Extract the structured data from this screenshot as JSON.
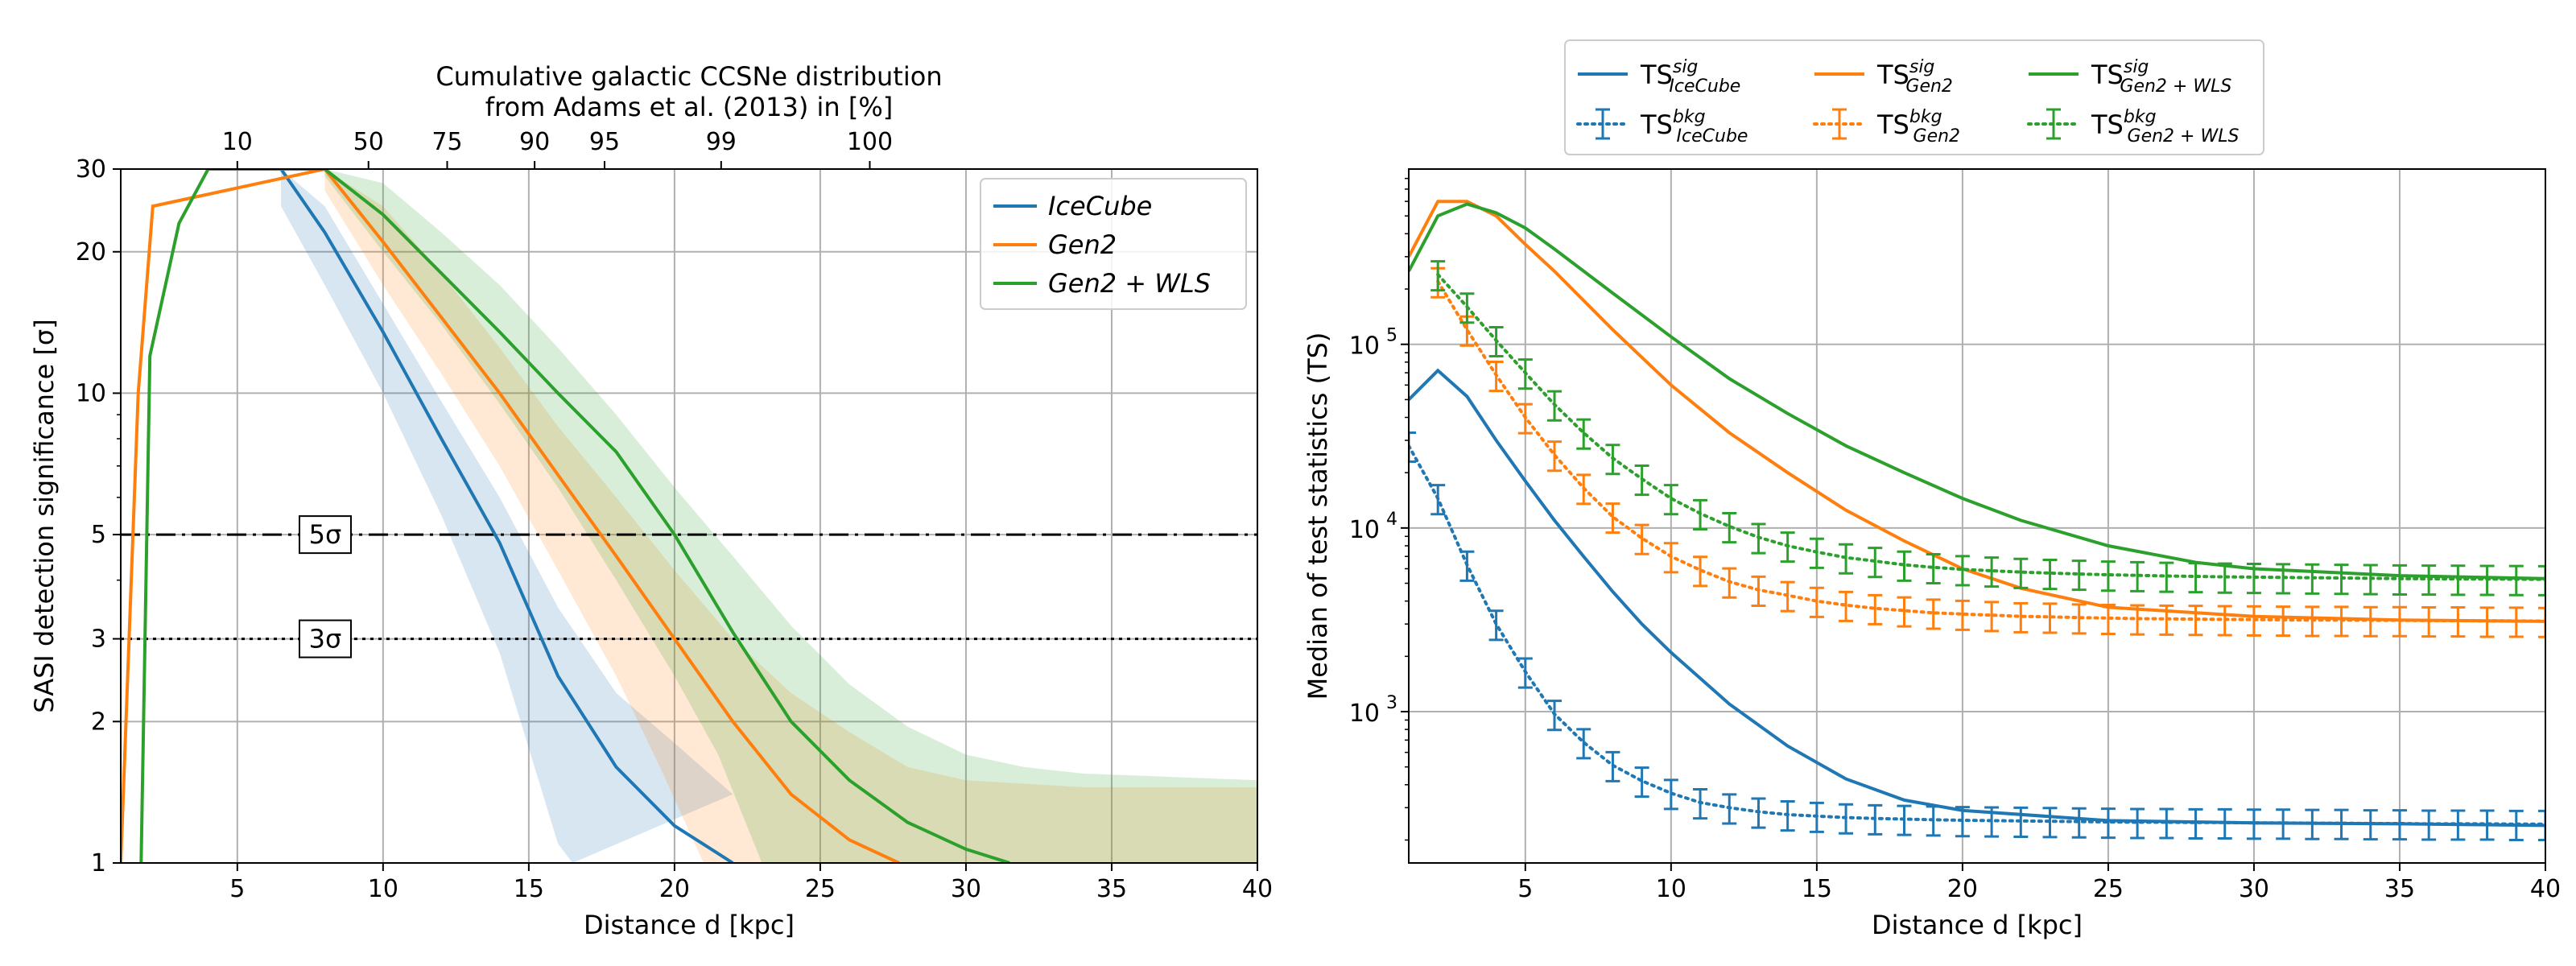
{
  "colors": {
    "IceCube": "#1f77b4",
    "Gen2": "#ff7f0e",
    "Gen2_WLS": "#2ca02c",
    "grid": "#b0b0b0"
  },
  "chart_data": [
    {
      "type": "line",
      "xlabel": "Distance d [kpc]",
      "ylabel": "SASI detection significance [σ]",
      "top_axis_title": [
        "Cumulative galactic CCSNe distribution",
        "from Adams et al. (2013) in [%]"
      ],
      "yscale": "log",
      "xlim": [
        1,
        40
      ],
      "ylim": [
        1,
        30
      ],
      "grid": true,
      "legend_position": "upper right",
      "x_ticks": [
        5,
        10,
        15,
        20,
        25,
        30,
        35,
        40
      ],
      "x_tick_labels": [
        "5",
        "10",
        "15",
        "20",
        "25",
        "30",
        "35",
        "40"
      ],
      "y_ticks": [
        1,
        2,
        3,
        5,
        10,
        20,
        30
      ],
      "y_tick_labels": [
        "1",
        "2",
        "3",
        "5",
        "10",
        "20",
        "30"
      ],
      "top_ticks": [
        {
          "x": 5,
          "label": "10"
        },
        {
          "x": 9.5,
          "label": "50"
        },
        {
          "x": 12.2,
          "label": "75"
        },
        {
          "x": 15.2,
          "label": "90"
        },
        {
          "x": 17.6,
          "label": "95"
        },
        {
          "x": 21.6,
          "label": "99"
        },
        {
          "x": 26.7,
          "label": "100"
        }
      ],
      "hlines": [
        {
          "y": 5,
          "style": "dashdot",
          "label": "5σ"
        },
        {
          "y": 3,
          "style": "dotted",
          "label": "3σ"
        }
      ],
      "series": [
        {
          "name": "IceCube",
          "color_key": "IceCube",
          "x": [
            6.5,
            8,
            10,
            12,
            14,
            16,
            18,
            20,
            22
          ],
          "y": [
            30,
            22,
            13.5,
            8,
            4.8,
            2.5,
            1.6,
            1.2,
            1.0
          ],
          "band_upper": [
            [
              6.5,
              30
            ],
            [
              8,
              25
            ],
            [
              10,
              15.5
            ],
            [
              12,
              9.6
            ],
            [
              14,
              6
            ],
            [
              16,
              3.5
            ],
            [
              18,
              2.3
            ],
            [
              20,
              1.8
            ],
            [
              22,
              1.4
            ]
          ],
          "band_lower": [
            [
              6.5,
              25
            ],
            [
              8,
              17
            ],
            [
              10,
              10
            ],
            [
              12,
              5.5
            ],
            [
              14,
              2.8
            ],
            [
              16,
              1.1
            ],
            [
              16.5,
              1.0
            ]
          ]
        },
        {
          "name": "Gen2",
          "color_key": "Gen2",
          "x": [
            1.0,
            1.6,
            2.1,
            8,
            10,
            12,
            14,
            16,
            18,
            20,
            22,
            24,
            26,
            27.7
          ],
          "y": [
            1.0,
            10,
            25,
            30,
            21,
            14.5,
            10,
            6.7,
            4.5,
            3,
            2,
            1.4,
            1.12,
            1.0
          ],
          "band_upper": [
            [
              8,
              30
            ],
            [
              10,
              25
            ],
            [
              12,
              18
            ],
            [
              14,
              12.5
            ],
            [
              16,
              8.5
            ],
            [
              18,
              6
            ],
            [
              20,
              4.2
            ],
            [
              22,
              3
            ],
            [
              24,
              2.3
            ],
            [
              26,
              1.9
            ],
            [
              28,
              1.6
            ],
            [
              30,
              1.5
            ],
            [
              34,
              1.45
            ],
            [
              40,
              1.45
            ]
          ],
          "band_lower": [
            [
              8,
              27
            ],
            [
              10,
              17
            ],
            [
              12,
              11
            ],
            [
              14,
              7
            ],
            [
              16,
              4.2
            ],
            [
              18,
              2.5
            ],
            [
              19.5,
              1.6
            ],
            [
              21,
              1.0
            ]
          ]
        },
        {
          "name": "Gen2 + WLS",
          "color_key": "Gen2_WLS",
          "x": [
            1.7,
            2,
            3,
            4,
            8,
            10,
            12,
            14,
            16,
            18,
            20,
            22,
            24,
            26,
            28,
            30,
            31.5
          ],
          "y": [
            1.0,
            12,
            23,
            30,
            30,
            24,
            18,
            13.5,
            10,
            7.5,
            5,
            3.1,
            2.0,
            1.5,
            1.22,
            1.07,
            1.0
          ],
          "band_upper": [
            [
              8,
              30
            ],
            [
              10,
              28
            ],
            [
              12,
              22
            ],
            [
              14,
              17
            ],
            [
              16,
              12.5
            ],
            [
              18,
              9
            ],
            [
              20,
              6.3
            ],
            [
              22,
              4.5
            ],
            [
              24,
              3.2
            ],
            [
              26,
              2.4
            ],
            [
              28,
              1.95
            ],
            [
              30,
              1.7
            ],
            [
              32,
              1.6
            ],
            [
              34,
              1.55
            ],
            [
              40,
              1.5
            ]
          ],
          "band_lower": [
            [
              8,
              29
            ],
            [
              10,
              20
            ],
            [
              12,
              14
            ],
            [
              14,
              9.5
            ],
            [
              16,
              6.3
            ],
            [
              18,
              4
            ],
            [
              20,
              2.5
            ],
            [
              21.5,
              1.7
            ],
            [
              23,
              1.0
            ]
          ]
        }
      ],
      "legend": [
        "IceCube",
        "Gen2",
        "Gen2 + WLS"
      ]
    },
    {
      "type": "line",
      "xlabel": "Distance d [kpc]",
      "ylabel": "Median of test statistics (TS)",
      "yscale": "log",
      "xlim": [
        1,
        40
      ],
      "ylim": [
        150,
        900000
      ],
      "grid": true,
      "legend_position": "above plot",
      "x_ticks": [
        5,
        10,
        15,
        20,
        25,
        30,
        35,
        40
      ],
      "x_tick_labels": [
        "5",
        "10",
        "15",
        "20",
        "25",
        "30",
        "35",
        "40"
      ],
      "y_ticks": [
        1000,
        10000,
        100000
      ],
      "y_tick_labels": [
        [
          "10",
          "3"
        ],
        [
          "10",
          "4"
        ],
        [
          "10",
          "5"
        ]
      ],
      "series": [
        {
          "name": "TS sig IceCube",
          "label_base": "TS",
          "label_sup": "sig",
          "label_sub": "IceCube",
          "style": "solid",
          "color_key": "IceCube",
          "x": [
            1,
            2,
            3,
            4,
            5,
            6,
            7,
            8,
            9,
            10,
            12,
            14,
            16,
            18,
            20,
            25,
            30,
            35,
            40
          ],
          "y": [
            50000,
            72000,
            52000,
            30000,
            18000,
            11000,
            7000,
            4500,
            3000,
            2100,
            1100,
            650,
            430,
            330,
            290,
            255,
            248,
            245,
            240
          ]
        },
        {
          "name": "TS sig Gen2",
          "label_base": "TS",
          "label_sup": "sig",
          "label_sub": "Gen2",
          "style": "solid",
          "color_key": "Gen2",
          "x": [
            1,
            2,
            3,
            4,
            5,
            6,
            8,
            10,
            12,
            14,
            16,
            18,
            20,
            22,
            25,
            30,
            35,
            40
          ],
          "y": [
            300000,
            600000,
            600000,
            500000,
            350000,
            250000,
            120000,
            60000,
            33000,
            20000,
            12500,
            8500,
            6000,
            4700,
            3700,
            3300,
            3150,
            3100
          ]
        },
        {
          "name": "TS sig Gen2+WLS",
          "label_base": "TS",
          "label_sup": "sig",
          "label_sub": "Gen2 + WLS",
          "style": "solid",
          "color_key": "Gen2_WLS",
          "x": [
            1,
            2,
            3,
            4,
            5,
            6,
            8,
            10,
            12,
            14,
            16,
            18,
            20,
            22,
            25,
            28,
            30,
            35,
            40
          ],
          "y": [
            250000,
            500000,
            580000,
            520000,
            430000,
            330000,
            190000,
            110000,
            65000,
            42000,
            28000,
            20000,
            14500,
            11000,
            8000,
            6500,
            6000,
            5500,
            5300
          ]
        },
        {
          "name": "TS bkg IceCube",
          "label_base": "TS",
          "label_sup": "bkg",
          "label_sub": "IceCube",
          "style": "dotted-errorbar",
          "color_key": "IceCube",
          "x": [
            1,
            2,
            3,
            4,
            5,
            6,
            7,
            8,
            9,
            10,
            11,
            12,
            13,
            14,
            15,
            16,
            17,
            18,
            19,
            20,
            21,
            22,
            23,
            24,
            25,
            26,
            27,
            28,
            29,
            30,
            31,
            32,
            33,
            34,
            35,
            36,
            37,
            38,
            39,
            40
          ],
          "y": [
            28000,
            14500,
            6300,
            3000,
            1650,
            970,
            680,
            510,
            420,
            360,
            320,
            300,
            285,
            275,
            270,
            265,
            262,
            260,
            258,
            256,
            255,
            254,
            253,
            252,
            251,
            250,
            250,
            249,
            249,
            248,
            248,
            247,
            247,
            246,
            246,
            245,
            245,
            245,
            244,
            244
          ],
          "err_frac": 0.18
        },
        {
          "name": "TS bkg Gen2",
          "label_base": "TS",
          "label_sup": "bkg",
          "label_sub": "Gen2",
          "style": "dotted-errorbar",
          "color_key": "Gen2",
          "x": [
            2,
            3,
            4,
            5,
            6,
            7,
            8,
            9,
            10,
            11,
            12,
            13,
            14,
            15,
            16,
            17,
            18,
            19,
            20,
            21,
            22,
            23,
            24,
            25,
            26,
            27,
            28,
            29,
            30,
            31,
            32,
            33,
            34,
            35,
            36,
            37,
            38,
            39,
            40
          ],
          "y": [
            220000,
            120000,
            68000,
            40000,
            25000,
            16500,
            11500,
            8800,
            7000,
            5900,
            5100,
            4600,
            4300,
            4000,
            3800,
            3650,
            3550,
            3450,
            3400,
            3350,
            3300,
            3280,
            3250,
            3230,
            3210,
            3200,
            3190,
            3180,
            3170,
            3160,
            3150,
            3150,
            3140,
            3140,
            3130,
            3130,
            3120,
            3120,
            3110
          ],
          "err_frac": 0.18
        },
        {
          "name": "TS bkg Gen2+WLS",
          "label_base": "TS",
          "label_sup": "bkg",
          "label_sub": "Gen2 + WLS",
          "style": "dotted-errorbar",
          "color_key": "Gen2_WLS",
          "x": [
            2,
            3,
            4,
            5,
            6,
            7,
            8,
            9,
            10,
            11,
            12,
            13,
            14,
            15,
            16,
            17,
            18,
            19,
            20,
            21,
            22,
            23,
            24,
            25,
            26,
            27,
            28,
            29,
            30,
            31,
            32,
            33,
            34,
            35,
            36,
            37,
            38,
            39,
            40
          ],
          "y": [
            240000,
            160000,
            105000,
            70000,
            47000,
            33000,
            24000,
            18500,
            14500,
            12000,
            10200,
            8900,
            8000,
            7400,
            6900,
            6600,
            6300,
            6100,
            5950,
            5850,
            5750,
            5680,
            5620,
            5560,
            5520,
            5480,
            5450,
            5420,
            5400,
            5380,
            5360,
            5340,
            5320,
            5300,
            5290,
            5280,
            5270,
            5260,
            5250
          ],
          "err_frac": 0.18
        }
      ]
    }
  ]
}
